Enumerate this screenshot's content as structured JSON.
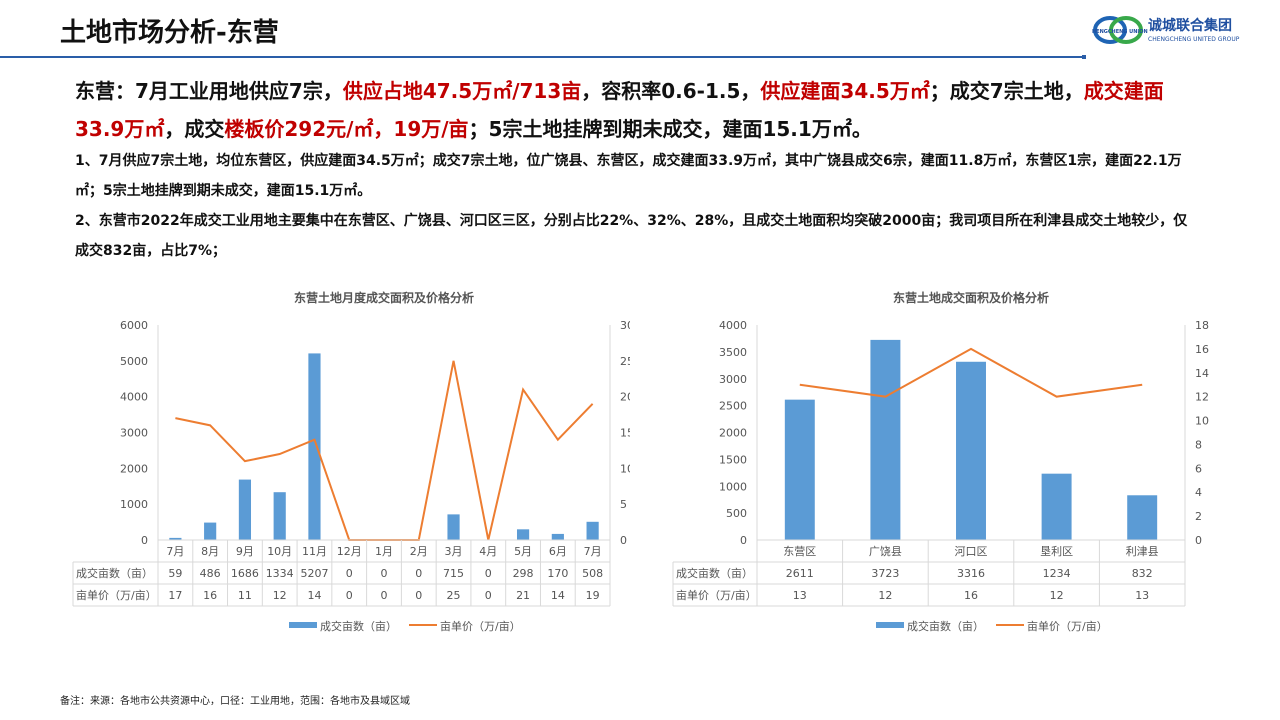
{
  "header": {
    "title": "土地市场分析-东营",
    "logo_cn": "诚城联合集团",
    "logo_en": "CHENGCHENG UNITED GROUP",
    "logo_ring": "CHENGCHENG UNION",
    "accent": "#2a5ea8"
  },
  "headline": {
    "parts": [
      {
        "t": "东营：7月工业用地供应7宗，",
        "red": false
      },
      {
        "t": "供应占地47.5万㎡/713亩",
        "red": true
      },
      {
        "t": "，容积率0.6-1.5，",
        "red": false
      },
      {
        "t": "供应建面34.5万㎡",
        "red": true
      },
      {
        "t": "；成交7宗土地，",
        "red": false
      },
      {
        "t": "成交建面33.9万㎡",
        "red": true
      },
      {
        "t": "，成交",
        "red": false
      },
      {
        "t": "楼板价292元/㎡，19万/亩",
        "red": true
      },
      {
        "t": "；5宗土地挂牌到期未成交，建面15.1万㎡。",
        "red": false
      }
    ]
  },
  "paragraphs": [
    "1、7月供应7宗土地，均位东营区，供应建面34.5万㎡；成交7宗土地，位广饶县、东营区，成交建面33.9万㎡，其中广饶县成交6宗，建面11.8万㎡，东营区1宗，建面22.1万㎡；5宗土地挂牌到期未成交，建面15.1万㎡。",
    "2、东营市2022年成交工业用地主要集中在东营区、广饶县、河口区三区，分别占比22%、32%、28%，且成交土地面积均突破2000亩；我司项目所在利津县成交土地较少，仅成交832亩，占比7%；"
  ],
  "chart_data": [
    {
      "type": "bar+line",
      "title": "东营土地月度成交面积及价格分析",
      "categories": [
        "7月",
        "8月",
        "9月",
        "10月",
        "11月",
        "12月",
        "1月",
        "2月",
        "3月",
        "4月",
        "5月",
        "6月",
        "7月"
      ],
      "series": [
        {
          "name": "成交亩数（亩）",
          "type": "bar",
          "axis": "left",
          "color": "#5b9bd5",
          "values": [
            59,
            486,
            1686,
            1334,
            5207,
            0,
            0,
            0,
            715,
            0,
            298,
            170,
            508
          ]
        },
        {
          "name": "亩单价（万/亩）",
          "type": "line",
          "axis": "right",
          "color": "#ed7d31",
          "values": [
            17,
            16,
            11,
            12,
            14,
            0,
            0,
            0,
            25,
            0,
            21,
            14,
            19
          ]
        }
      ],
      "ylim_left": [
        0,
        6000
      ],
      "ystep_left": 1000,
      "ylim_right": [
        0,
        30
      ],
      "ystep_right": 5,
      "data_table": true,
      "legend": "bottom",
      "grid": false
    },
    {
      "type": "bar+line",
      "title": "东营土地成交面积及价格分析",
      "categories": [
        "东营区",
        "广饶县",
        "河口区",
        "垦利区",
        "利津县"
      ],
      "series": [
        {
          "name": "成交亩数（亩）",
          "type": "bar",
          "axis": "left",
          "color": "#5b9bd5",
          "values": [
            2611,
            3723,
            3316,
            1234,
            832
          ]
        },
        {
          "name": "亩单价（万/亩）",
          "type": "line",
          "axis": "right",
          "color": "#ed7d31",
          "values": [
            13,
            12,
            16,
            12,
            13
          ]
        }
      ],
      "ylim_left": [
        0,
        4000
      ],
      "ystep_left": 500,
      "ylim_right": [
        0,
        18
      ],
      "ystep_right": 2,
      "data_table": true,
      "legend": "bottom",
      "grid": false
    }
  ],
  "footnote": "备注：来源：各地市公共资源中心，口径：工业用地，范围：各地市及县域区域"
}
